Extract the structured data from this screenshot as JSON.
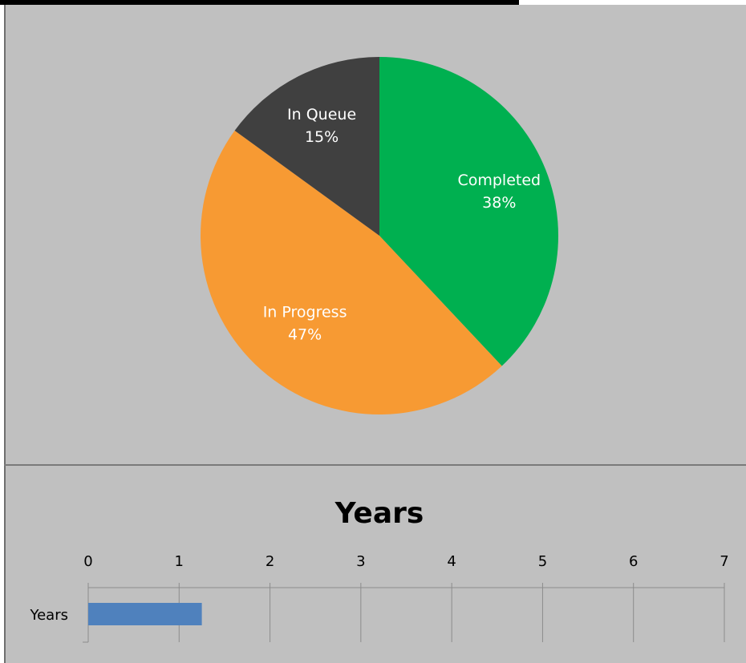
{
  "chart_data": [
    {
      "type": "pie",
      "slices": [
        {
          "label": "Completed",
          "value": 38,
          "value_label": "38%",
          "color": "#00b050"
        },
        {
          "label": "In Progress",
          "value": 47,
          "value_label": "47%",
          "color": "#f79a33"
        },
        {
          "label": "In Queue",
          "value": 15,
          "value_label": "15%",
          "color": "#404040"
        }
      ]
    },
    {
      "type": "bar",
      "orientation": "horizontal",
      "title": "Years",
      "categories": [
        "Years"
      ],
      "values": [
        1.25
      ],
      "xlim": [
        0,
        7
      ],
      "x_ticks": [
        "0",
        "1",
        "2",
        "3",
        "4",
        "5",
        "6",
        "7"
      ],
      "grid": true,
      "bar_color": "#4f81bd"
    }
  ]
}
